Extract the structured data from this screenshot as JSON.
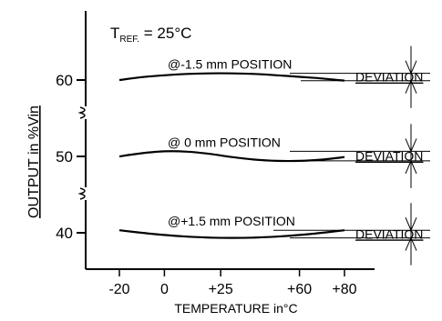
{
  "chart_data": {
    "type": "line",
    "title": "",
    "reference": {
      "prefix": "T",
      "subscript": "REF.",
      "suffix": " = 25°C"
    },
    "xlabel": "TEMPERATURE in°C",
    "ylabel": "OUTPUT in %Vin",
    "x_ticks": [
      "-20",
      "0",
      "+25",
      "+60",
      "+80"
    ],
    "x_tick_values": [
      -20,
      0,
      25,
      60,
      80
    ],
    "xlim": [
      -20,
      80
    ],
    "y_ticks": [
      "60",
      "50",
      "40"
    ],
    "y_tick_values": [
      60,
      50,
      40
    ],
    "y_axis_breaks": true,
    "series": [
      {
        "name": "@-1.5 mm POSITION",
        "base": 60,
        "x": [
          -20,
          -10,
          0,
          10,
          20,
          30,
          40,
          50,
          60,
          70,
          80
        ],
        "y": [
          60.0,
          60.45,
          60.75,
          60.95,
          61.05,
          61.05,
          60.95,
          60.75,
          60.5,
          60.25,
          59.9
        ]
      },
      {
        "name": "@ 0 mm POSITION",
        "base": 50,
        "x": [
          -20,
          -10,
          0,
          10,
          20,
          30,
          40,
          50,
          60,
          70,
          80
        ],
        "y": [
          50.0,
          50.5,
          50.8,
          50.75,
          50.4,
          49.9,
          49.5,
          49.3,
          49.3,
          49.5,
          49.9
        ]
      },
      {
        "name": "@+1.5 mm POSITION",
        "base": 40,
        "x": [
          -20,
          -10,
          0,
          10,
          20,
          30,
          40,
          50,
          60,
          70,
          80
        ],
        "y": [
          40.4,
          40.0,
          39.65,
          39.4,
          39.25,
          39.2,
          39.25,
          39.4,
          39.65,
          40.0,
          40.4
        ]
      }
    ],
    "deviation_label": "DEVIATION"
  }
}
